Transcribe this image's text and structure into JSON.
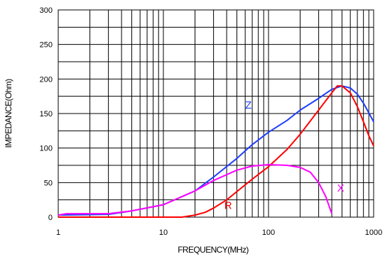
{
  "chart_data": {
    "type": "line",
    "title": "",
    "xlabel": "FREQUENCY(MHz)",
    "ylabel": "IMPEDANCE(Ohm)",
    "xscale": "log",
    "xlim": [
      1,
      1000
    ],
    "ylim": [
      0,
      300
    ],
    "grid": true,
    "legend": "inline labels near curves",
    "x_ticks": [
      1,
      10,
      100,
      1000
    ],
    "x_tick_labels": [
      "1",
      "10",
      "100",
      "1000"
    ],
    "y_ticks": [
      0,
      50,
      100,
      150,
      200,
      250,
      300
    ],
    "y_tick_labels": [
      "0",
      "50",
      "100",
      "150",
      "200",
      "250",
      "300"
    ],
    "series": [
      {
        "name": "Z",
        "color": "#1f3fff",
        "label_at": [
          60,
          157
        ],
        "points": [
          [
            1,
            3
          ],
          [
            3,
            4
          ],
          [
            5,
            9
          ],
          [
            10,
            18
          ],
          [
            20,
            38
          ],
          [
            30,
            58
          ],
          [
            50,
            85
          ],
          [
            70,
            105
          ],
          [
            100,
            123
          ],
          [
            150,
            140
          ],
          [
            200,
            155
          ],
          [
            300,
            172
          ],
          [
            400,
            185
          ],
          [
            500,
            190
          ],
          [
            600,
            187
          ],
          [
            700,
            178
          ],
          [
            800,
            165
          ],
          [
            900,
            151
          ],
          [
            1000,
            138
          ]
        ]
      },
      {
        "name": "R",
        "color": "#ff0000",
        "label_at": [
          38,
          12
        ],
        "points": [
          [
            1,
            0
          ],
          [
            15,
            0
          ],
          [
            20,
            3
          ],
          [
            25,
            7
          ],
          [
            30,
            13
          ],
          [
            40,
            25
          ],
          [
            50,
            37
          ],
          [
            70,
            55
          ],
          [
            100,
            73
          ],
          [
            150,
            98
          ],
          [
            200,
            120
          ],
          [
            300,
            155
          ],
          [
            400,
            180
          ],
          [
            450,
            190
          ],
          [
            500,
            190
          ],
          [
            600,
            180
          ],
          [
            700,
            160
          ],
          [
            800,
            138
          ],
          [
            900,
            118
          ],
          [
            1000,
            103
          ]
        ]
      },
      {
        "name": "X",
        "color": "#ff00ff",
        "label_at": [
          450,
          37
        ],
        "points": [
          [
            1,
            3
          ],
          [
            1.2,
            5
          ],
          [
            3,
            5
          ],
          [
            5,
            9
          ],
          [
            10,
            18
          ],
          [
            20,
            38
          ],
          [
            30,
            53
          ],
          [
            50,
            68
          ],
          [
            70,
            74
          ],
          [
            100,
            76
          ],
          [
            150,
            75
          ],
          [
            200,
            72
          ],
          [
            250,
            65
          ],
          [
            300,
            50
          ],
          [
            350,
            30
          ],
          [
            400,
            5
          ]
        ]
      }
    ]
  }
}
